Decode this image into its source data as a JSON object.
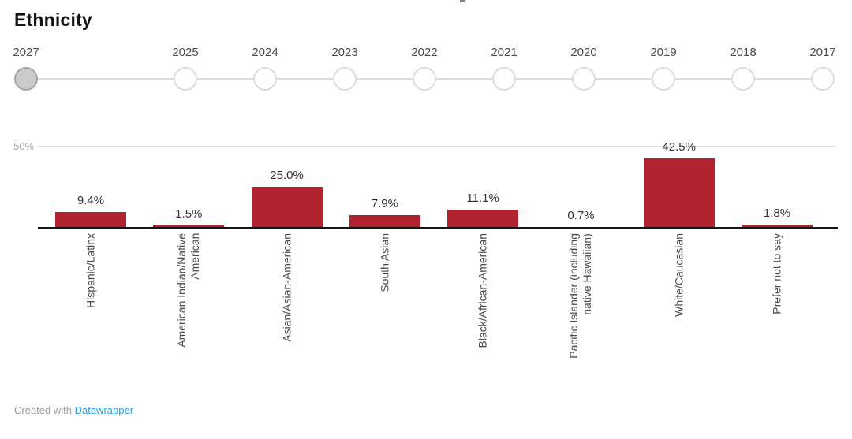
{
  "title": "Ethnicity",
  "slider": {
    "selected_year": "2027",
    "years": [
      "2027",
      "2025",
      "2024",
      "2023",
      "2022",
      "2021",
      "2020",
      "2019",
      "2018",
      "2017"
    ]
  },
  "chart_data": {
    "type": "bar",
    "title": "Ethnicity",
    "categories": [
      "Hispanic/Latinx",
      "American Indian/Native\nAmerican",
      "Asian/Asian-American",
      "South Asian",
      "Black/African-American",
      "Pacific Islander (including\nnative Hawaiian)",
      "White/Caucasian",
      "Prefer not to say"
    ],
    "values": [
      9.4,
      1.5,
      25.0,
      7.9,
      11.1,
      0.7,
      42.5,
      1.8
    ],
    "value_label_format": "one-decimal-percent",
    "xlabel": "",
    "ylabel": "",
    "ylim": [
      0,
      50
    ],
    "ytick_labels": [
      "50%"
    ],
    "grid": "horizontal-50-only",
    "legend": "none",
    "x_label_rotation": -90
  },
  "colors": {
    "bar": "#b0232f",
    "selected_stop_fill": "#cbcbcb",
    "selected_stop_border": "#a5a5a5",
    "stop_border": "#dcdcdc",
    "track": "#dcdcdc",
    "gridline": "#dddddd",
    "axis": "#151515",
    "link_blue": "#2d9edb"
  },
  "footer": {
    "created_with": "Created with ",
    "link_label": "Datawrapper"
  }
}
